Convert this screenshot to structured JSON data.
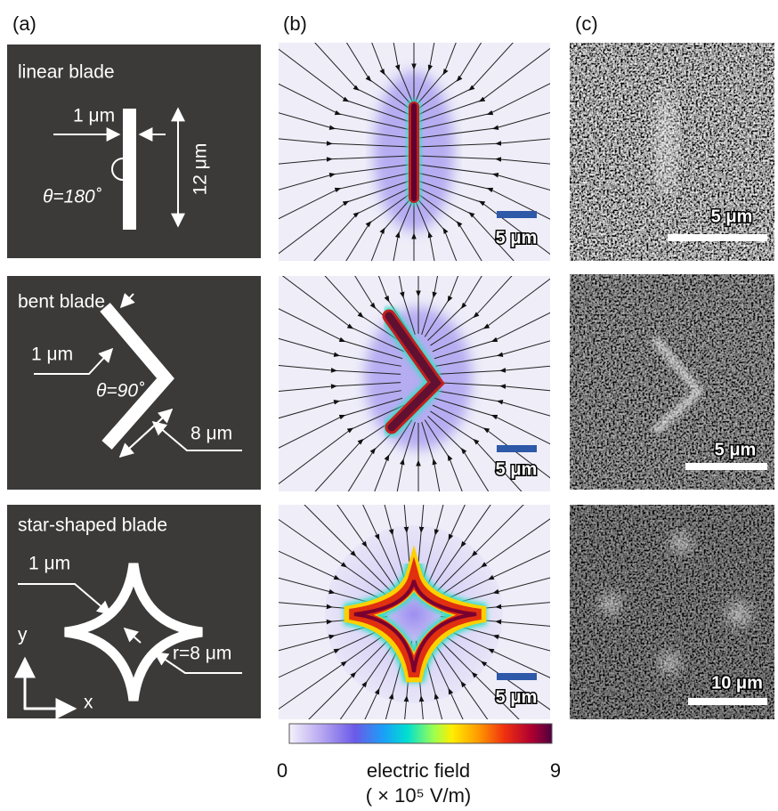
{
  "panel_labels": [
    "(a)",
    "(b)",
    "(c)"
  ],
  "rows": [
    {
      "title": "linear blade",
      "width_label": "1 μm",
      "angle_label": "θ=180˚",
      "length_label": "12 μm",
      "field_scale_bar": "5 μm",
      "image_scale_bar": "5 μm"
    },
    {
      "title": "bent blade",
      "width_label": "1 μm",
      "angle_label": "θ=90˚",
      "length_label": "8 μm",
      "field_scale_bar": "5 μm",
      "image_scale_bar": "5 μm"
    },
    {
      "title": "star-shaped blade",
      "width_label": "1 μm",
      "radius_label": "r=8 μm",
      "axis_y": "y",
      "axis_x": "x",
      "field_scale_bar": "5 μm",
      "image_scale_bar": "10 μm"
    }
  ],
  "colorbar": {
    "min": 0,
    "max": 9,
    "label": "electric field",
    "units": "( × 10⁵ V/m)"
  }
}
